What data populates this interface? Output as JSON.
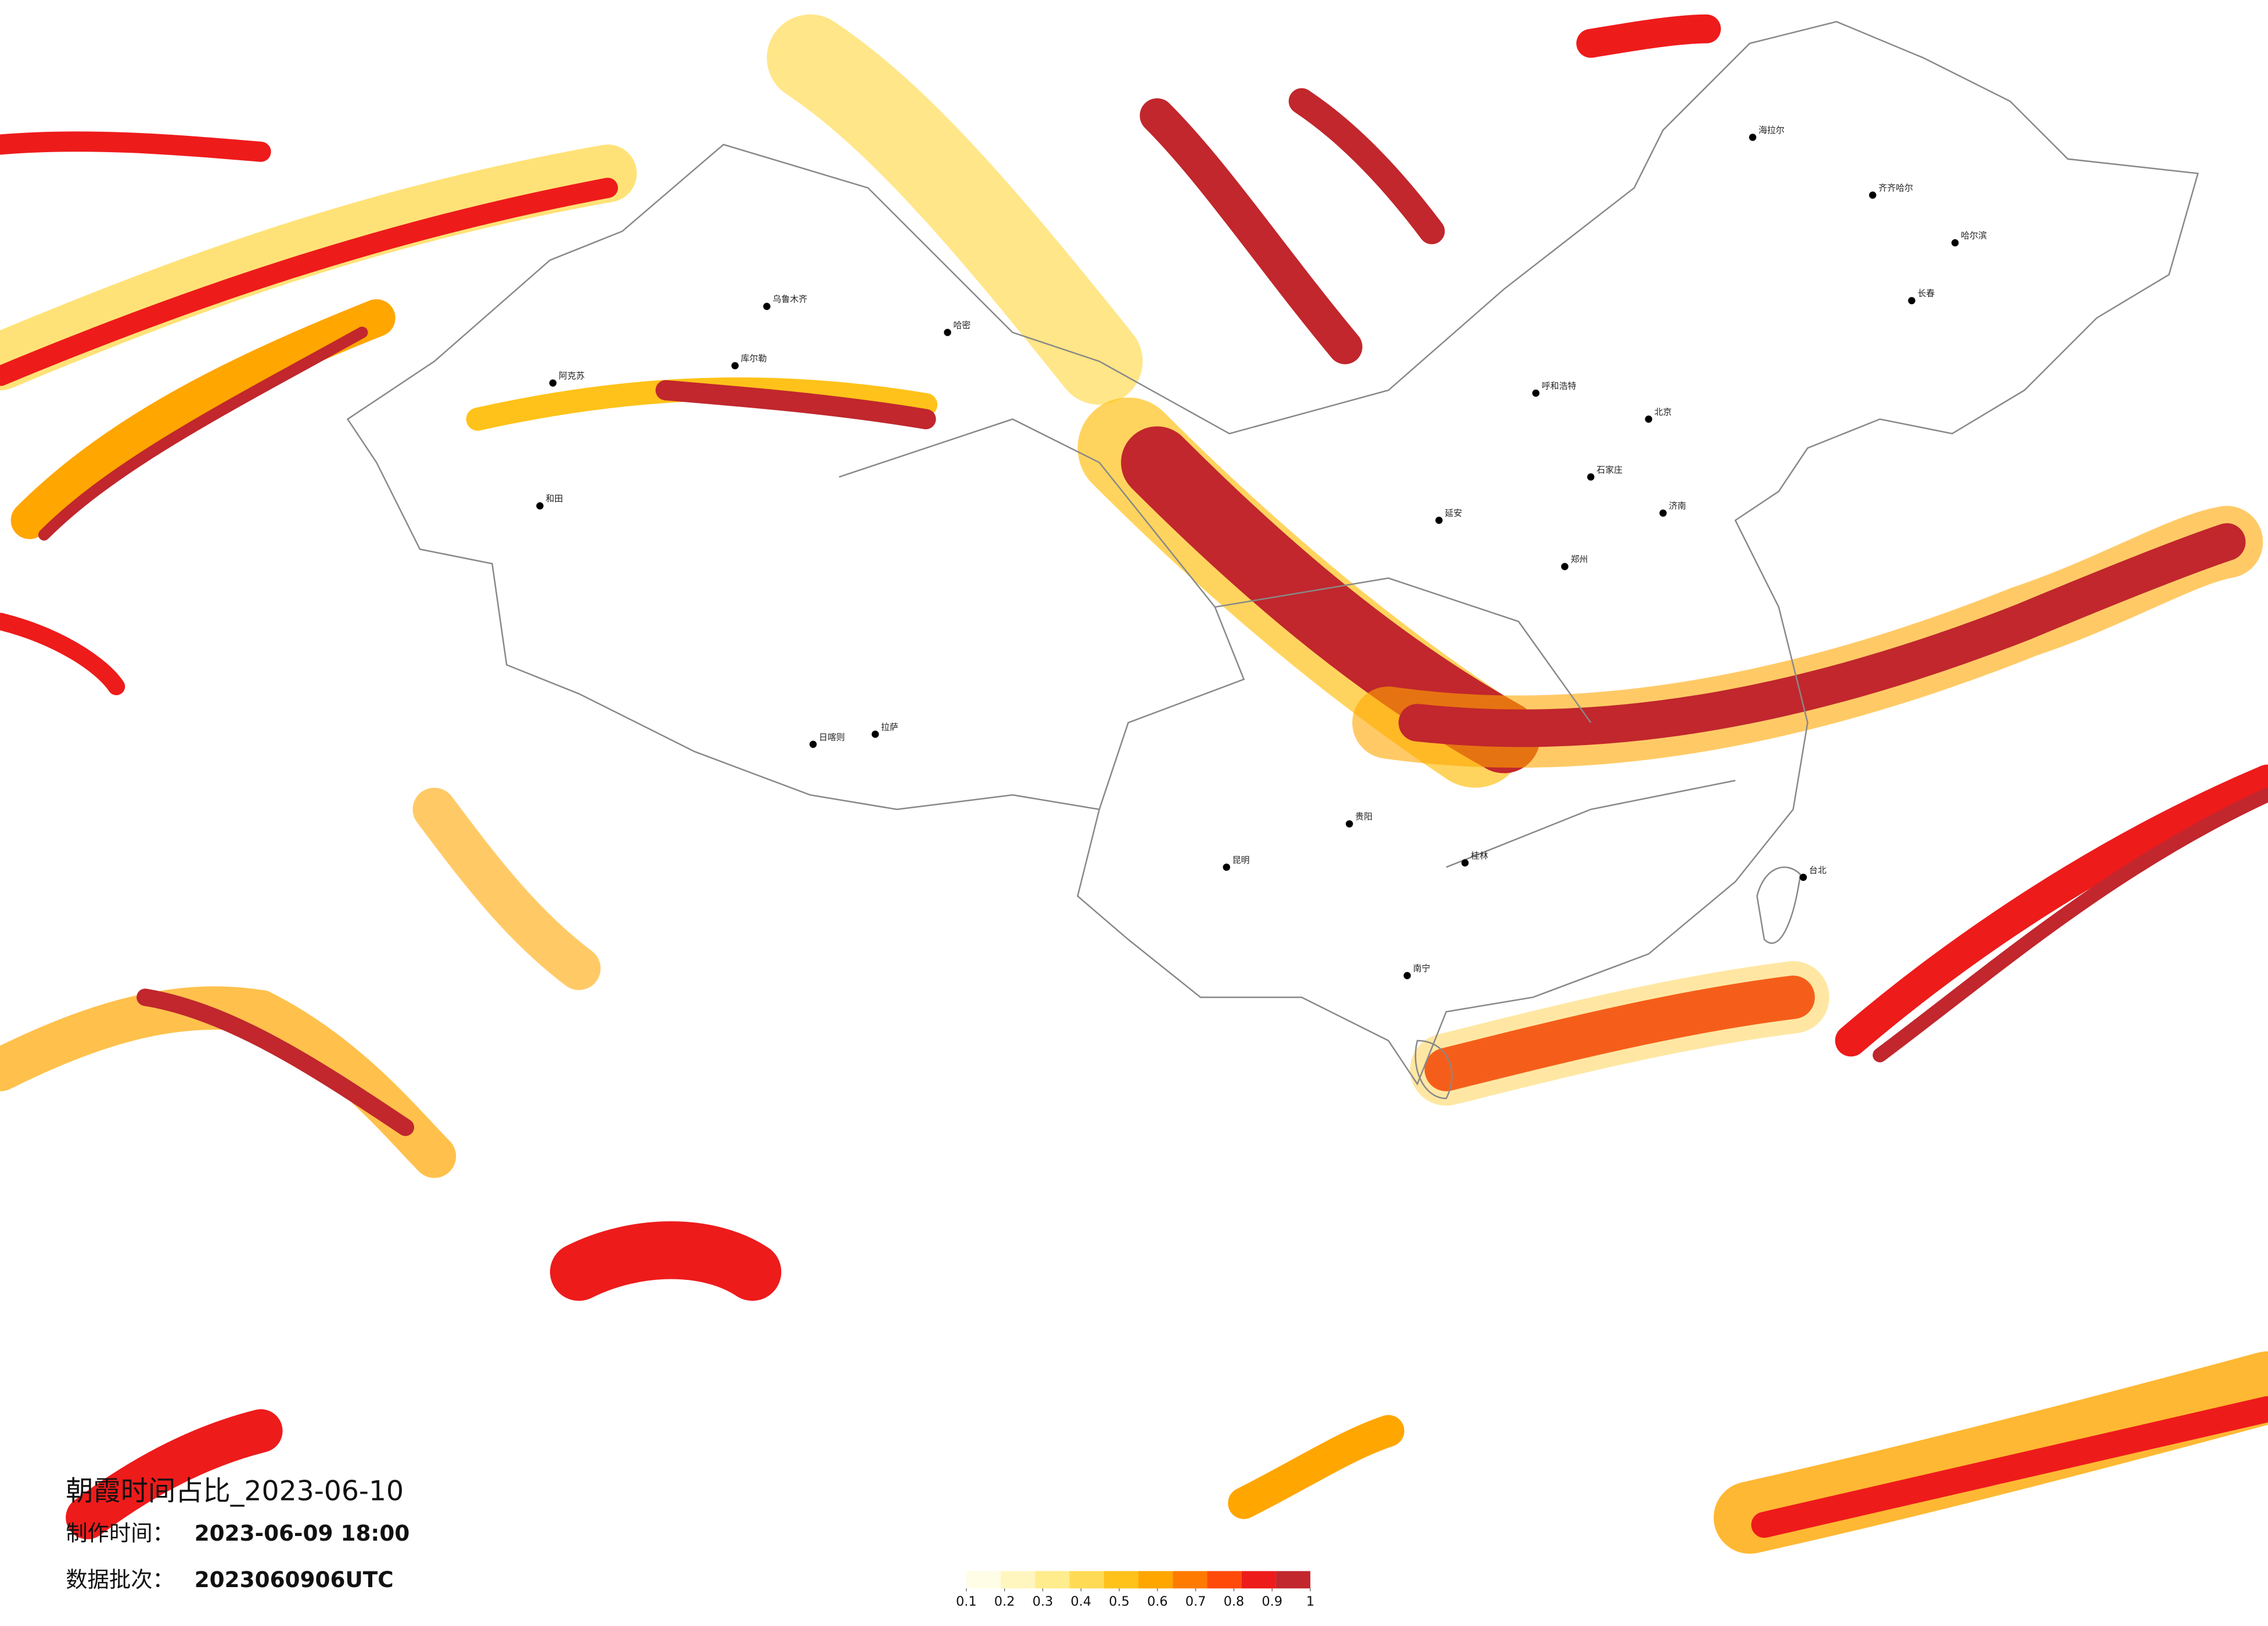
{
  "title": "朝霞时间占比_2023-06-10",
  "production_time": {
    "label": "制作时间：",
    "value": "2023-06-09 18:00"
  },
  "data_batch": {
    "label": "数据批次：",
    "value": "2023060906UTC"
  },
  "legend": {
    "ticks": [
      0.1,
      0.2,
      0.3,
      0.4,
      0.5,
      0.6,
      0.7,
      0.8,
      0.9,
      1
    ],
    "colors": [
      "#fffde6",
      "#fff6bf",
      "#ffec8c",
      "#ffdb55",
      "#ffc21a",
      "#ffa600",
      "#ff7a00",
      "#ff4a0a",
      "#ee1b1b",
      "#c1272d"
    ]
  },
  "cities": [
    "海拉尔",
    "齐齐哈尔",
    "哈尔滨",
    "长春",
    "呼和浩特",
    "北京",
    "石家庄",
    "济南",
    "郑州",
    "延安",
    "乌鲁木齐",
    "哈密",
    "库尔勒",
    "阿克苏",
    "和田",
    "拉萨",
    "日喀则",
    "昆明",
    "贵阳",
    "南宁",
    "桂林",
    "台北"
  ]
}
